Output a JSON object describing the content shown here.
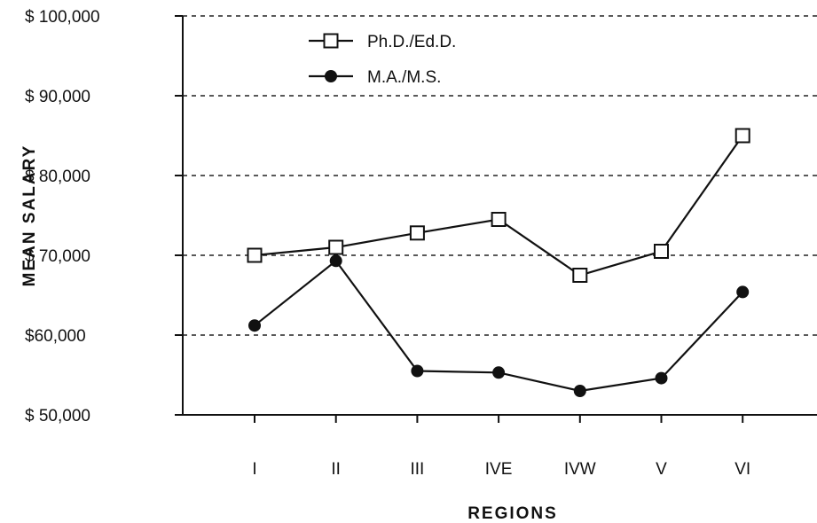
{
  "chart_data": {
    "type": "line",
    "xlabel": "REGIONS",
    "ylabel": "MEAN  SALARY",
    "categories": [
      "I",
      "II",
      "III",
      "IVE",
      "IVW",
      "V",
      "VI"
    ],
    "ylim": [
      50000,
      100000
    ],
    "yticks": [
      {
        "value": 100000,
        "label": "$ 100,000"
      },
      {
        "value": 90000,
        "label": "$ 90,000"
      },
      {
        "value": 80000,
        "label": "$ 80,000"
      },
      {
        "value": 70000,
        "label": "$ 70,000"
      },
      {
        "value": 60000,
        "label": "$60,000"
      },
      {
        "value": 50000,
        "label": "$ 50,000"
      }
    ],
    "grid": true,
    "legend_position": "top-left",
    "series": [
      {
        "name": "Ph.D./Ed.D.",
        "marker": "open-square",
        "values": [
          70000,
          71000,
          72800,
          74500,
          67500,
          70500,
          85000
        ]
      },
      {
        "name": "M.A./M.S.",
        "marker": "filled-circle",
        "values": [
          61200,
          69300,
          55500,
          55300,
          53000,
          54600,
          65400
        ]
      }
    ]
  }
}
